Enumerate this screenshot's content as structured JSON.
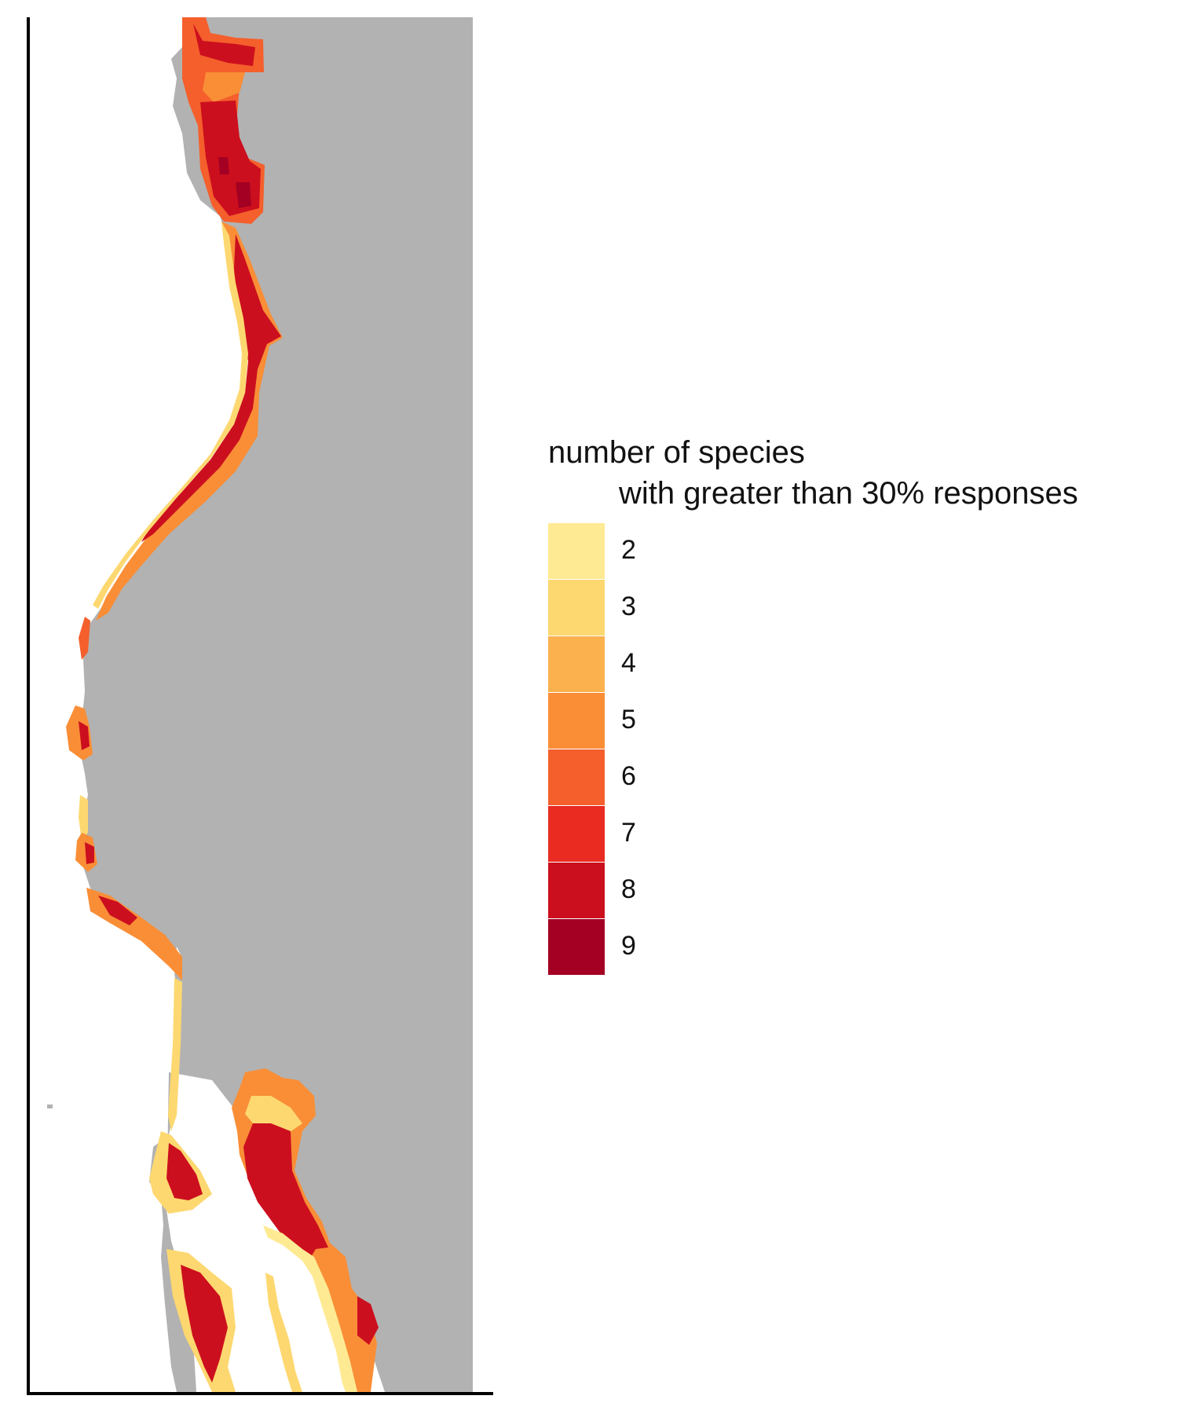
{
  "legend": {
    "title_line1": "number of species",
    "title_line2": "with greater than 30% responses",
    "items": [
      {
        "label": "2",
        "color": "#FFEA94"
      },
      {
        "label": "3",
        "color": "#FDD870"
      },
      {
        "label": "4",
        "color": "#FBB14E"
      },
      {
        "label": "5",
        "color": "#F98E37"
      },
      {
        "label": "6",
        "color": "#F45F2C"
      },
      {
        "label": "7",
        "color": "#E92B22"
      },
      {
        "label": "8",
        "color": "#CC0F1E"
      },
      {
        "label": "9",
        "color": "#A30023"
      }
    ]
  },
  "colors": {
    "land": "#B2B2B2",
    "background": "#FFFFFF",
    "axis": "#000000"
  }
}
